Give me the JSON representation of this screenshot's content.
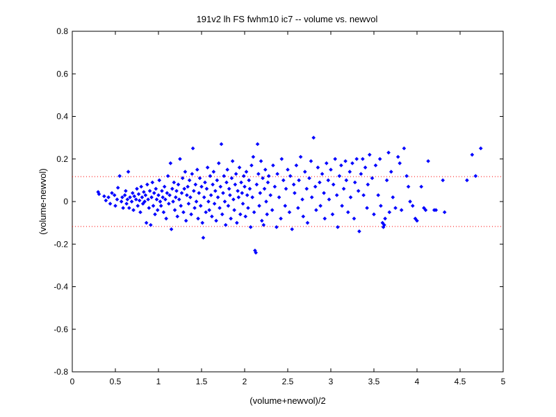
{
  "chart_data": {
    "type": "scatter",
    "title": "191v2 lh FS fwhm10 ic7 -- volume vs. newvol",
    "xlabel": "(volume+newvol)/2",
    "ylabel": "(volume-newvol)",
    "xlim": [
      0,
      5
    ],
    "ylim": [
      -0.8,
      0.8
    ],
    "x_ticks": [
      0,
      0.5,
      1,
      1.5,
      2,
      2.5,
      3,
      3.5,
      4,
      4.5,
      5
    ],
    "x_tick_labels": [
      "0",
      "0.5",
      "1",
      "1.5",
      "2",
      "2.5",
      "3",
      "3.5",
      "4",
      "4.5",
      "5"
    ],
    "y_ticks": [
      -0.8,
      -0.6,
      -0.4,
      -0.2,
      0,
      0.2,
      0.4,
      0.6,
      0.8
    ],
    "y_tick_labels": [
      "-0.8",
      "-0.6",
      "-0.4",
      "-0.2",
      "0",
      "0.2",
      "0.4",
      "0.6",
      "0.8"
    ],
    "grid": false,
    "reference_lines": [
      {
        "y": 0.117,
        "style": "dotted",
        "color": "#ff0000"
      },
      {
        "y": -0.117,
        "style": "dotted",
        "color": "#ff0000"
      }
    ],
    "marker_color": "#0000ff",
    "marker": "diamond",
    "series": [
      {
        "points": [
          [
            0.3,
            0.045
          ],
          [
            0.31,
            0.035
          ],
          [
            0.37,
            0.025
          ],
          [
            0.39,
            0.005
          ],
          [
            0.42,
            0.02
          ],
          [
            0.44,
            -0.01
          ],
          [
            0.46,
            0.04
          ],
          [
            0.49,
            0.03
          ],
          [
            0.5,
            -0.02
          ],
          [
            0.52,
            0.01
          ],
          [
            0.53,
            0.065
          ],
          [
            0.55,
            0.12
          ],
          [
            0.57,
            0.0
          ],
          [
            0.58,
            0.02
          ],
          [
            0.59,
            -0.03
          ],
          [
            0.61,
            0.03
          ],
          [
            0.62,
            0.05
          ],
          [
            0.63,
            -0.01
          ],
          [
            0.64,
            0.01
          ],
          [
            0.65,
            0.14
          ],
          [
            0.66,
            -0.03
          ],
          [
            0.67,
            0.02
          ],
          [
            0.69,
            0.0
          ],
          [
            0.7,
            0.04
          ],
          [
            0.71,
            -0.04
          ],
          [
            0.72,
            0.025
          ],
          [
            0.74,
            0.01
          ],
          [
            0.75,
            0.06
          ],
          [
            0.76,
            -0.02
          ],
          [
            0.77,
            0.035
          ],
          [
            0.78,
            0.005
          ],
          [
            0.79,
            -0.05
          ],
          [
            0.8,
            0.07
          ],
          [
            0.81,
            0.02
          ],
          [
            0.82,
            -0.01
          ],
          [
            0.83,
            0.045
          ],
          [
            0.84,
            0.0
          ],
          [
            0.85,
            0.03
          ],
          [
            0.86,
            -0.1
          ],
          [
            0.87,
            0.08
          ],
          [
            0.88,
            0.01
          ],
          [
            0.89,
            -0.03
          ],
          [
            0.9,
            0.05
          ],
          [
            0.91,
            -0.11
          ],
          [
            0.92,
            0.02
          ],
          [
            0.93,
            0.09
          ],
          [
            0.94,
            -0.02
          ],
          [
            0.95,
            0.04
          ],
          [
            0.96,
            -0.06
          ],
          [
            0.97,
            0.06
          ],
          [
            0.98,
            0.01
          ],
          [
            0.99,
            -0.04
          ],
          [
            1.0,
            0.03
          ],
          [
            1.01,
            0.1
          ],
          [
            1.02,
            0.0
          ],
          [
            1.03,
            -0.02
          ],
          [
            1.04,
            0.05
          ],
          [
            1.05,
            0.02
          ],
          [
            1.06,
            -0.05
          ],
          [
            1.07,
            0.07
          ],
          [
            1.08,
            0.01
          ],
          [
            1.09,
            -0.08
          ],
          [
            1.1,
            0.04
          ],
          [
            1.11,
            0.12
          ],
          [
            1.12,
            -0.01
          ],
          [
            1.13,
            0.03
          ],
          [
            1.14,
            0.18
          ],
          [
            1.15,
            -0.13
          ],
          [
            1.16,
            0.06
          ],
          [
            1.17,
            0.0
          ],
          [
            1.18,
            0.09
          ],
          [
            1.19,
            -0.04
          ],
          [
            1.2,
            0.02
          ],
          [
            1.21,
            0.05
          ],
          [
            1.22,
            -0.07
          ],
          [
            1.23,
            0.08
          ],
          [
            1.24,
            0.01
          ],
          [
            1.25,
            0.2
          ],
          [
            1.26,
            -0.02
          ],
          [
            1.27,
            0.04
          ],
          [
            1.28,
            0.11
          ],
          [
            1.29,
            -0.05
          ],
          [
            1.3,
            0.06
          ],
          [
            1.31,
            0.14
          ],
          [
            1.32,
            -0.09
          ],
          [
            1.33,
            0.03
          ],
          [
            1.34,
            0.07
          ],
          [
            1.35,
            -0.01
          ],
          [
            1.36,
            0.1
          ],
          [
            1.37,
            0.02
          ],
          [
            1.38,
            -0.06
          ],
          [
            1.39,
            0.13
          ],
          [
            1.4,
            0.25
          ],
          [
            1.41,
            0.05
          ],
          [
            1.42,
            -0.03
          ],
          [
            1.43,
            0.08
          ],
          [
            1.44,
            0.0
          ],
          [
            1.45,
            0.15
          ],
          [
            1.46,
            -0.08
          ],
          [
            1.47,
            0.04
          ],
          [
            1.48,
            0.11
          ],
          [
            1.49,
            -0.02
          ],
          [
            1.5,
            0.07
          ],
          [
            1.51,
            -0.1
          ],
          [
            1.52,
            -0.17
          ],
          [
            1.53,
            0.02
          ],
          [
            1.54,
            0.09
          ],
          [
            1.55,
            -0.05
          ],
          [
            1.56,
            0.06
          ],
          [
            1.57,
            0.16
          ],
          [
            1.58,
            0.0
          ],
          [
            1.59,
            -0.04
          ],
          [
            1.6,
            0.12
          ],
          [
            1.61,
            0.03
          ],
          [
            1.62,
            -0.07
          ],
          [
            1.63,
            0.08
          ],
          [
            1.64,
            0.14
          ],
          [
            1.65,
            -0.01
          ],
          [
            1.66,
            0.05
          ],
          [
            1.67,
            -0.09
          ],
          [
            1.68,
            0.1
          ],
          [
            1.69,
            0.02
          ],
          [
            1.7,
            0.18
          ],
          [
            1.71,
            -0.03
          ],
          [
            1.72,
            0.07
          ],
          [
            1.73,
            0.27
          ],
          [
            1.74,
            -0.06
          ],
          [
            1.75,
            0.04
          ],
          [
            1.76,
            0.12
          ],
          [
            1.77,
            0.0
          ],
          [
            1.78,
            -0.11
          ],
          [
            1.79,
            0.09
          ],
          [
            1.8,
            0.15
          ],
          [
            1.81,
            -0.02
          ],
          [
            1.82,
            0.06
          ],
          [
            1.83,
            0.03
          ],
          [
            1.84,
            -0.08
          ],
          [
            1.85,
            0.11
          ],
          [
            1.86,
            0.19
          ],
          [
            1.87,
            0.01
          ],
          [
            1.88,
            -0.04
          ],
          [
            1.89,
            0.08
          ],
          [
            1.9,
            0.13
          ],
          [
            1.91,
            -0.1
          ],
          [
            1.92,
            0.05
          ],
          [
            1.93,
            0.02
          ],
          [
            1.94,
            0.16
          ],
          [
            1.95,
            -0.06
          ],
          [
            1.96,
            0.09
          ],
          [
            1.97,
            0.04
          ],
          [
            1.98,
            -0.01
          ],
          [
            1.99,
            0.12
          ],
          [
            2.0,
            0.07
          ],
          [
            2.01,
            -0.07
          ],
          [
            2.02,
            0.14
          ],
          [
            2.03,
            0.03
          ],
          [
            2.04,
            -0.03
          ],
          [
            2.05,
            0.1
          ],
          [
            2.06,
            0.06
          ],
          [
            2.07,
            -0.12
          ],
          [
            2.08,
            0.17
          ],
          [
            2.09,
            0.02
          ],
          [
            2.1,
            0.21
          ],
          [
            2.11,
            -0.05
          ],
          [
            2.12,
            -0.23
          ],
          [
            2.13,
            -0.24
          ],
          [
            2.14,
            0.08
          ],
          [
            2.15,
            0.27
          ],
          [
            2.16,
            0.13
          ],
          [
            2.17,
            -0.02
          ],
          [
            2.18,
            0.04
          ],
          [
            2.19,
            0.19
          ],
          [
            2.2,
            -0.09
          ],
          [
            2.21,
            0.11
          ],
          [
            2.22,
            -0.11
          ],
          [
            2.23,
            0.06
          ],
          [
            2.24,
            0.15
          ],
          [
            2.25,
            0.0
          ],
          [
            2.26,
            -0.06
          ],
          [
            2.27,
            0.09
          ],
          [
            2.28,
            0.12
          ],
          [
            2.3,
            0.03
          ],
          [
            2.32,
            -0.04
          ],
          [
            2.33,
            0.17
          ],
          [
            2.35,
            0.07
          ],
          [
            2.37,
            -0.12
          ],
          [
            2.38,
            0.13
          ],
          [
            2.4,
            0.02
          ],
          [
            2.42,
            -0.08
          ],
          [
            2.43,
            0.2
          ],
          [
            2.45,
            0.1
          ],
          [
            2.47,
            -0.02
          ],
          [
            2.48,
            0.06
          ],
          [
            2.5,
            0.15
          ],
          [
            2.52,
            -0.05
          ],
          [
            2.53,
            0.12
          ],
          [
            2.55,
            -0.13
          ],
          [
            2.57,
            0.08
          ],
          [
            2.58,
            0.04
          ],
          [
            2.6,
            0.17
          ],
          [
            2.62,
            -0.03
          ],
          [
            2.63,
            0.1
          ],
          [
            2.65,
            0.21
          ],
          [
            2.67,
            0.01
          ],
          [
            2.68,
            -0.07
          ],
          [
            2.7,
            0.14
          ],
          [
            2.72,
            0.06
          ],
          [
            2.73,
            -0.1
          ],
          [
            2.75,
            0.11
          ],
          [
            2.77,
            0.19
          ],
          [
            2.78,
            0.02
          ],
          [
            2.8,
            0.3
          ],
          [
            2.82,
            0.07
          ],
          [
            2.83,
            -0.04
          ],
          [
            2.85,
            0.16
          ],
          [
            2.87,
            0.09
          ],
          [
            2.88,
            -0.02
          ],
          [
            2.9,
            0.13
          ],
          [
            2.92,
            0.04
          ],
          [
            2.93,
            -0.08
          ],
          [
            2.95,
            0.18
          ],
          [
            2.97,
            0.1
          ],
          [
            2.98,
            0.01
          ],
          [
            3.0,
            0.15
          ],
          [
            3.02,
            -0.06
          ],
          [
            3.03,
            0.08
          ],
          [
            3.05,
            0.2
          ],
          [
            3.07,
            0.03
          ],
          [
            3.08,
            -0.12
          ],
          [
            3.1,
            0.12
          ],
          [
            3.12,
            0.17
          ],
          [
            3.13,
            -0.02
          ],
          [
            3.15,
            0.06
          ],
          [
            3.17,
            0.19
          ],
          [
            3.18,
            0.1
          ],
          [
            3.2,
            -0.05
          ],
          [
            3.22,
            0.14
          ],
          [
            3.23,
            0.02
          ],
          [
            3.25,
            0.18
          ],
          [
            3.27,
            -0.08
          ],
          [
            3.28,
            0.09
          ],
          [
            3.3,
            0.2
          ],
          [
            3.32,
            0.05
          ],
          [
            3.33,
            -0.14
          ],
          [
            3.35,
            0.13
          ],
          [
            3.37,
            0.2
          ],
          [
            3.38,
            0.03
          ],
          [
            3.4,
            0.16
          ],
          [
            3.42,
            -0.03
          ],
          [
            3.43,
            0.08
          ],
          [
            3.45,
            0.22
          ],
          [
            3.48,
            0.11
          ],
          [
            3.5,
            -0.06
          ],
          [
            3.52,
            0.17
          ],
          [
            3.55,
            0.03
          ],
          [
            3.57,
            0.2
          ],
          [
            3.58,
            -0.02
          ],
          [
            3.6,
            -0.1
          ],
          [
            3.61,
            -0.12
          ],
          [
            3.62,
            -0.11
          ],
          [
            3.63,
            -0.08
          ],
          [
            3.65,
            0.1
          ],
          [
            3.67,
            0.23
          ],
          [
            3.68,
            -0.05
          ],
          [
            3.7,
            0.14
          ],
          [
            3.72,
            0.02
          ],
          [
            3.75,
            -0.03
          ],
          [
            3.78,
            0.21
          ],
          [
            3.8,
            0.18
          ],
          [
            3.82,
            -0.04
          ],
          [
            3.85,
            0.25
          ],
          [
            3.88,
            0.12
          ],
          [
            3.9,
            0.07
          ],
          [
            3.92,
            0.0
          ],
          [
            3.95,
            -0.02
          ],
          [
            3.98,
            -0.08
          ],
          [
            4.0,
            -0.09
          ],
          [
            4.05,
            0.07
          ],
          [
            4.08,
            -0.03
          ],
          [
            4.1,
            -0.04
          ],
          [
            4.13,
            0.19
          ],
          [
            4.2,
            -0.04
          ],
          [
            4.22,
            -0.04
          ],
          [
            4.3,
            0.1
          ],
          [
            4.32,
            -0.05
          ],
          [
            4.58,
            0.1
          ],
          [
            4.64,
            0.22
          ],
          [
            4.68,
            0.12
          ],
          [
            4.74,
            0.25
          ]
        ]
      }
    ]
  }
}
